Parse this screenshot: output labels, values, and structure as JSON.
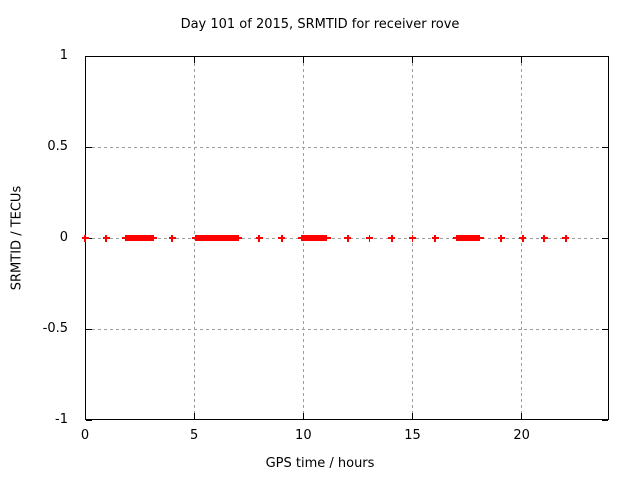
{
  "colors": {
    "marker": "#ff0000",
    "grid": "#9e9e9e",
    "border": "#000000",
    "background": "#ffffff"
  },
  "chart_data": {
    "type": "scatter",
    "title": "Day 101 of 2015, SRMTID for receiver rove",
    "xlabel": "GPS time / hours",
    "ylabel": "SRMTID / TECUs",
    "xlim": [
      0,
      24
    ],
    "ylim": [
      -1,
      1
    ],
    "xticks": [
      0,
      5,
      10,
      15,
      20
    ],
    "xtick_labels": [
      "0",
      "5",
      "10",
      "15",
      "20"
    ],
    "yticks": [
      -1,
      -0.5,
      0,
      0.5,
      1
    ],
    "ytick_labels": [
      "-1",
      "-0.5",
      "0",
      "0.5",
      "1"
    ],
    "grid": true,
    "legend": "none",
    "marker_style": "plus",
    "series": [
      {
        "name": "SRMTID",
        "y_value": 0,
        "isolated_x": [
          0.0,
          0.97,
          4.0,
          7.97,
          9.02,
          12.04,
          13.03,
          14.05,
          15.0,
          16.04,
          19.06,
          20.05,
          21.04,
          22.03
        ],
        "dense_ranges": [
          [
            1.85,
            3.15
          ],
          [
            5.05,
            7.05
          ],
          [
            9.9,
            11.1
          ],
          [
            17.0,
            18.1
          ]
        ]
      }
    ]
  }
}
